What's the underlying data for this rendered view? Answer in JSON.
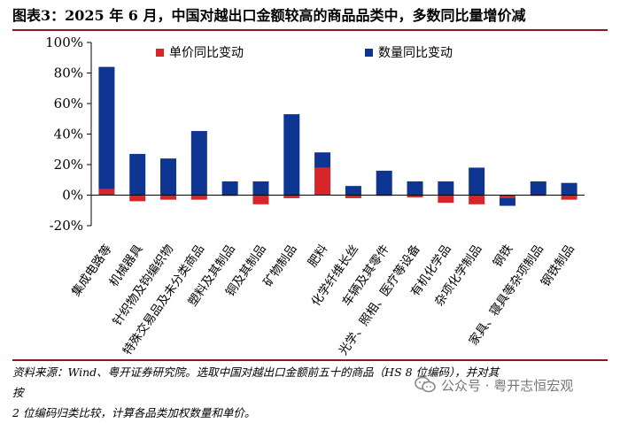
{
  "header": {
    "title": "图表3：2025 年 6 月，中国对越出口金额较高的商品品类中，多数同比量增价减"
  },
  "footer": {
    "source_line1": "资料来源：Wind、粤开证券研究院。选取中国对越出口金额前五十的商品（HS 8 位编码），并对其按",
    "source_line2": "2 位编码归类比较，计算各品类加权数量和单价。",
    "watermark": "公众号 · 粤开志恒宏观"
  },
  "colors": {
    "price": "#d7262b",
    "quantity": "#0d3591"
  },
  "chart_data": {
    "type": "bar",
    "stacked": true,
    "categories": [
      "集成电路等",
      "机械器具",
      "针织物及钩编织物",
      "特殊交易品及未分类商品",
      "塑料及其制品",
      "铜及其制品",
      "矿物制品",
      "肥料",
      "化学纤维长丝",
      "车辆及其零件",
      "光学、照相、医疗等设备",
      "有机化学品",
      "杂项化学制品",
      "钢铁",
      "家具、寝具等杂项制品",
      "钢铁制品"
    ],
    "series": [
      {
        "name": "单价同比变动",
        "color": "#d7262b",
        "values": [
          4,
          -4,
          -3,
          -3,
          -0.5,
          -6,
          -2,
          18,
          -2,
          -0.5,
          -1.5,
          -5,
          -6,
          -2,
          -0.5,
          -3
        ]
      },
      {
        "name": "数量同比变动",
        "color": "#0d3591",
        "values": [
          80,
          27,
          24,
          42,
          9,
          9,
          53,
          10,
          6,
          16,
          9,
          9,
          18,
          -5,
          9,
          8
        ]
      }
    ],
    "y_ticks": [
      "100%",
      "80%",
      "60%",
      "40%",
      "20%",
      "0%",
      "-20%"
    ],
    "ylim": [
      -20,
      100
    ],
    "legend_position": "top",
    "grid": false
  }
}
